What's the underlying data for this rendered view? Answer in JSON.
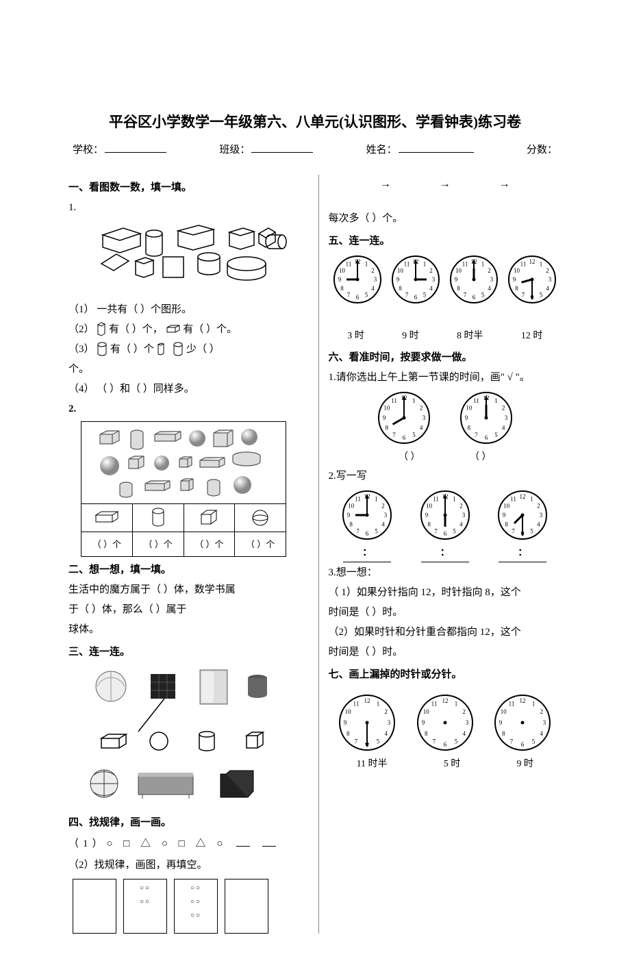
{
  "title": "平谷区小学数学一年级第六、八单元(认识图形、学看钟表)练习卷",
  "info": {
    "school_label": "学校：",
    "class_label": "班级：",
    "name_label": "姓名：",
    "score_label": "分数："
  },
  "sec1": {
    "title": "一、看图数一数，填一填。",
    "q1_num": "1.",
    "q1_1": "（1）   一共有（          ）个图形。",
    "q1_2a": "（2） ",
    "q1_2b": " 有（    ）个，",
    "q1_2c": " 有（   ）个。",
    "q1_3a": "（3）",
    "q1_3b": " 有（     ）个",
    "q1_3c": "     少（       ）",
    "q1_3d": "个。",
    "q1_4": "（4） （           ）和（              ）同样多。",
    "q2_num": "2.",
    "count_label": "（      ）个"
  },
  "sec2": {
    "title": "二、想一想，填一填。",
    "line1": "生活中的魔方属于（            ）体，数学书属",
    "line2": "于（          ）体，那么（                  ）属于",
    "line3": "球体。"
  },
  "sec3": {
    "title": "三、连一连。"
  },
  "sec4": {
    "title": "四、找规律，画一画。",
    "p1": "（1）○  □   △  ○  □   △  ○",
    "p2": "（2）找规律，画图，再填空。"
  },
  "right": {
    "each_more": "  每次多（         ）个。"
  },
  "sec5": {
    "title": "五、连一连。",
    "times": [
      "3 时",
      "9 时",
      "8 时半",
      "12 时"
    ],
    "clock_hands": [
      {
        "h": 9,
        "m": 0
      },
      {
        "h": 3,
        "m": 0
      },
      {
        "h": 12,
        "m": 0
      },
      {
        "h": 8,
        "m": 30
      }
    ]
  },
  "sec6": {
    "title": "六、看准时间，按要求做一做。",
    "q1": "1.请你选出上午上第一节课的时间，画\" √ \"。",
    "q1_clocks": [
      {
        "h": 8,
        "m": 0
      },
      {
        "h": 12,
        "m": 0
      }
    ],
    "q1_paren": "（        ）",
    "q2": "2.写一写",
    "q2_clocks": [
      {
        "h": 9,
        "m": 0
      },
      {
        "h": 6,
        "m": 0
      },
      {
        "h": 7,
        "m": 30
      }
    ],
    "colon": "：",
    "q3": "3.想一想：",
    "q3_1a": "（  1）如果分针指向 12，时针指向 8，这个",
    "q3_1b": "时间是（              ）时。",
    "q3_2a": "（2）如果时针和分针重合都指向 12，这个",
    "q3_2b": "时间是（     ）时。"
  },
  "sec7": {
    "title": "七、画上漏掉的时针或分针。",
    "labels": [
      "11 时半",
      "5 时",
      "9 时"
    ],
    "clocks": [
      {
        "h": null,
        "m": 30,
        "show_h": false,
        "show_m": true
      },
      {
        "h": null,
        "m": null,
        "show_h": false,
        "show_m": false
      },
      {
        "h": null,
        "m": null,
        "show_h": false,
        "show_m": false
      }
    ]
  },
  "colors": {
    "text": "#000000",
    "bg": "#ffffff",
    "divider": "#888888"
  }
}
